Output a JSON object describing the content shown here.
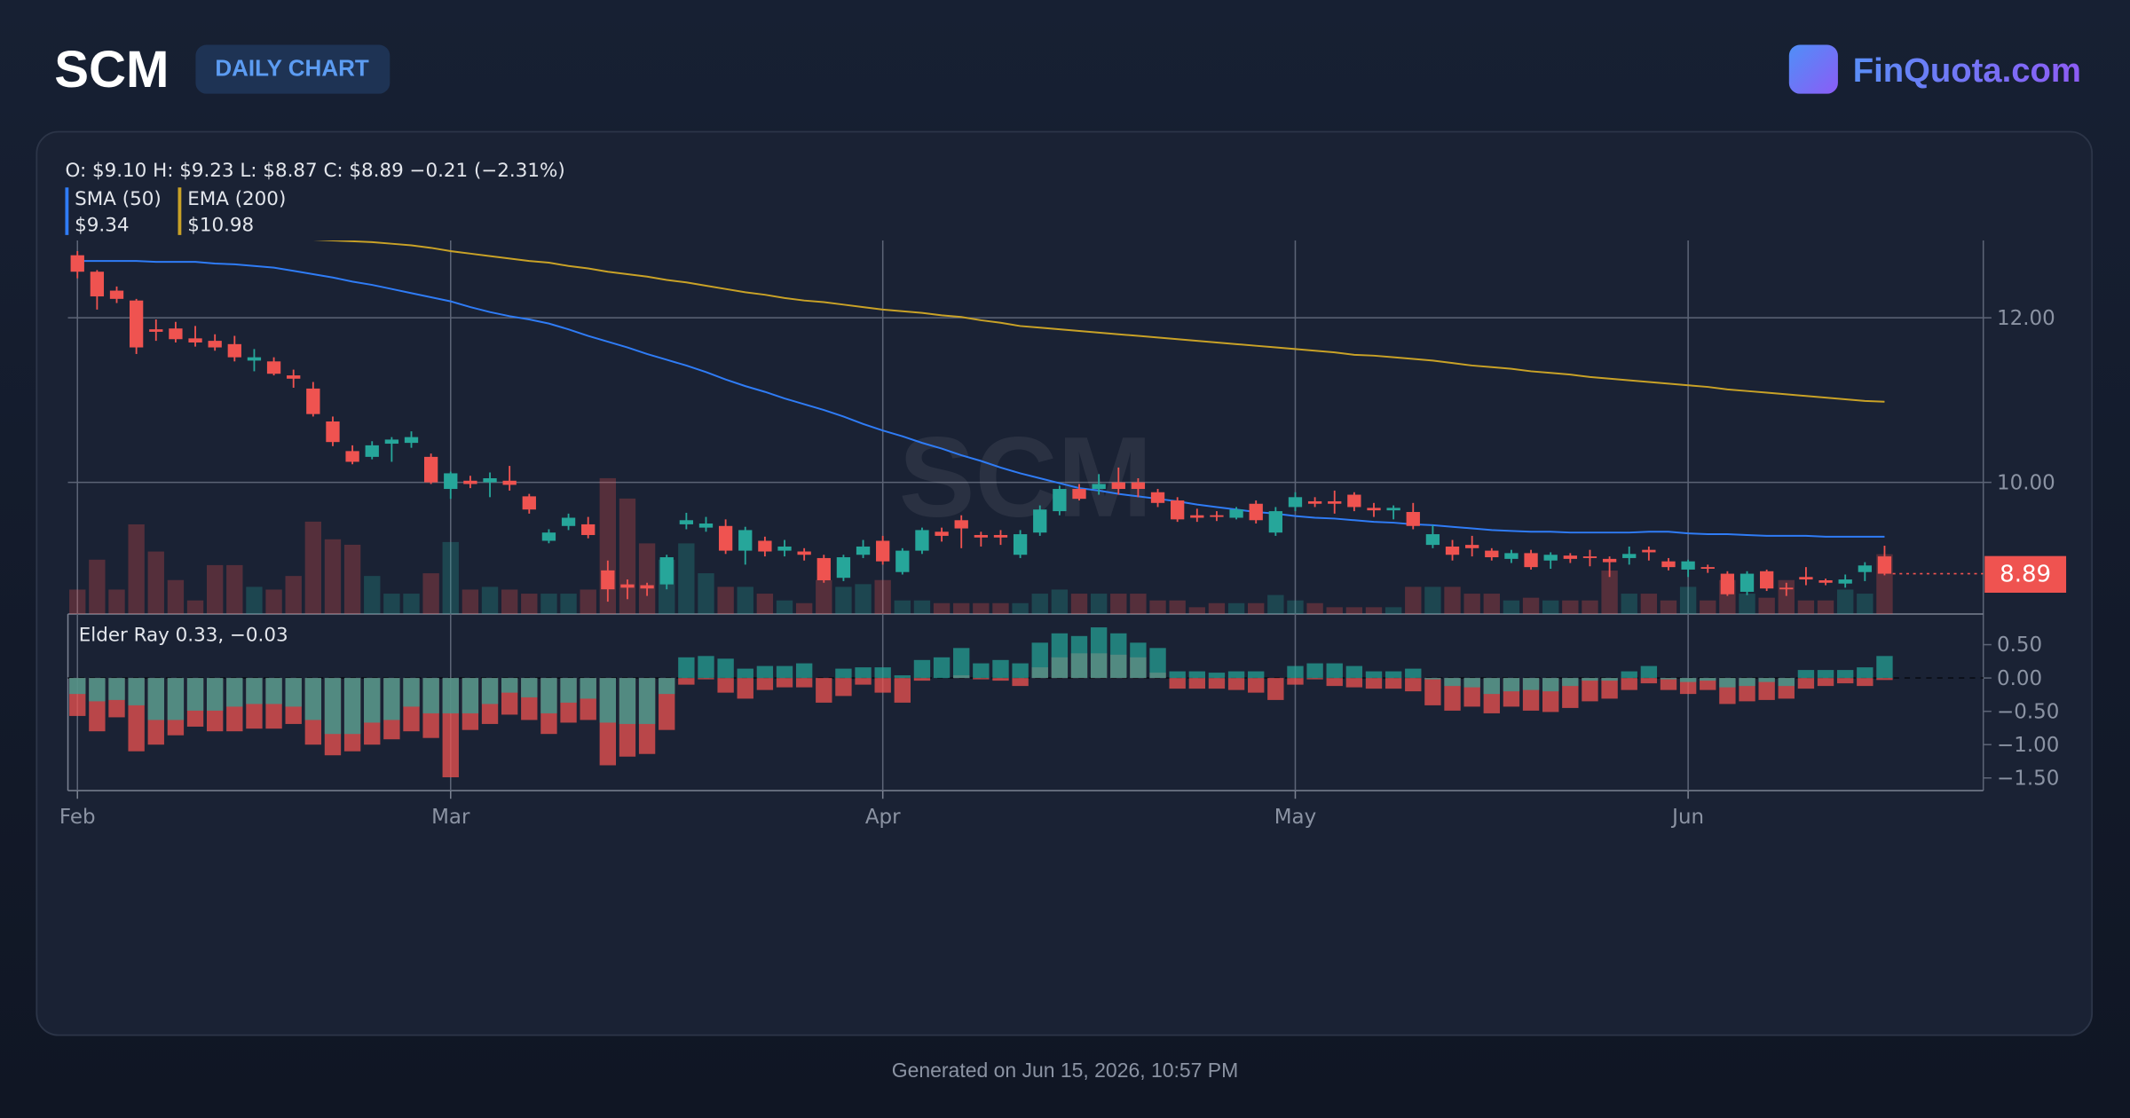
{
  "header": {
    "symbol": "SCM",
    "badge": "DAILY CHART",
    "brand": "FinQuota.com"
  },
  "footer": "Generated on Jun 15, 2026, 10:57 PM",
  "chart_data": {
    "type": "candlestick",
    "watermark": "SCM",
    "ohlc_label": "O: $9.10 H: $9.23 L: $8.87 C: $8.89 −0.21 (−2.31%)",
    "up_color": "#26a69a",
    "down_color": "#ef5350",
    "categories": [
      "Feb",
      null,
      null,
      null,
      null,
      null,
      null,
      null,
      null,
      null,
      null,
      null,
      null,
      null,
      null,
      null,
      null,
      null,
      null,
      "Mar",
      null,
      null,
      null,
      null,
      null,
      null,
      null,
      null,
      null,
      null,
      null,
      null,
      null,
      null,
      null,
      null,
      null,
      null,
      null,
      null,
      null,
      "Apr",
      null,
      null,
      null,
      null,
      null,
      null,
      null,
      null,
      null,
      null,
      null,
      null,
      null,
      null,
      null,
      null,
      null,
      null,
      null,
      null,
      "May",
      null,
      null,
      null,
      null,
      null,
      null,
      null,
      null,
      null,
      null,
      null,
      null,
      null,
      null,
      null,
      null,
      null,
      null,
      null,
      "Jun",
      null,
      null,
      null,
      null,
      null,
      null,
      null,
      null,
      null,
      null
    ],
    "open": [
      12.76,
      12.56,
      12.33,
      12.21,
      11.86,
      11.87,
      11.75,
      11.72,
      11.68,
      11.48,
      11.47,
      11.3,
      11.14,
      10.74,
      10.38,
      10.31,
      10.47,
      10.48,
      10.31,
      9.92,
      10.02,
      10.0,
      10.02,
      9.83,
      9.29,
      9.47,
      9.49,
      8.93,
      8.76,
      8.75,
      8.76,
      9.49,
      9.45,
      9.47,
      9.17,
      9.29,
      9.17,
      9.16,
      9.08,
      8.84,
      9.12,
      9.29,
      8.91,
      9.17,
      9.4,
      9.54,
      9.36,
      9.36,
      9.12,
      9.39,
      9.65,
      9.92,
      9.92,
      10.0,
      10.0,
      9.88,
      9.78,
      9.6,
      9.6,
      9.57,
      9.74,
      9.39,
      9.7,
      9.77,
      9.77,
      9.85,
      9.69,
      9.66,
      9.64,
      9.24,
      9.22,
      9.24,
      9.17,
      9.07,
      9.14,
      9.05,
      9.11,
      9.1,
      9.07,
      9.08,
      9.18,
      9.04,
      8.94,
      8.97,
      8.89,
      8.67,
      8.92,
      8.72,
      8.85,
      8.81,
      8.77,
      8.91,
      9.1
    ],
    "high": [
      12.81,
      12.58,
      12.38,
      12.23,
      11.98,
      11.95,
      11.9,
      11.8,
      11.78,
      11.62,
      11.52,
      11.37,
      11.22,
      10.8,
      10.45,
      10.5,
      10.55,
      10.62,
      10.35,
      10.13,
      10.08,
      10.12,
      10.2,
      9.86,
      9.43,
      9.62,
      9.58,
      9.05,
      8.82,
      8.78,
      9.12,
      9.63,
      9.58,
      9.55,
      9.46,
      9.34,
      9.3,
      9.2,
      9.12,
      9.12,
      9.3,
      9.35,
      9.2,
      9.45,
      9.45,
      9.6,
      9.4,
      9.42,
      9.42,
      9.72,
      9.96,
      9.98,
      10.1,
      10.18,
      10.05,
      9.92,
      9.82,
      9.68,
      9.65,
      9.7,
      9.78,
      9.7,
      9.88,
      9.82,
      9.9,
      9.88,
      9.75,
      9.72,
      9.75,
      9.48,
      9.3,
      9.35,
      9.2,
      9.18,
      9.18,
      9.15,
      9.14,
      9.18,
      9.1,
      9.22,
      9.22,
      9.08,
      9.06,
      9.0,
      8.92,
      8.92,
      8.94,
      8.78,
      8.97,
      8.83,
      8.88,
      9.03,
      9.23
    ],
    "low": [
      12.48,
      12.1,
      12.18,
      11.56,
      11.72,
      11.7,
      11.65,
      11.6,
      11.47,
      11.35,
      11.3,
      11.15,
      10.8,
      10.44,
      10.22,
      10.28,
      10.25,
      10.42,
      9.98,
      9.8,
      9.93,
      9.82,
      9.9,
      9.62,
      9.26,
      9.42,
      9.32,
      8.55,
      8.58,
      8.62,
      8.7,
      9.43,
      9.4,
      9.13,
      9.0,
      9.1,
      9.1,
      9.05,
      8.78,
      8.8,
      9.08,
      9.0,
      8.88,
      9.13,
      9.28,
      9.2,
      9.22,
      9.24,
      9.08,
      9.35,
      9.6,
      9.78,
      9.85,
      9.85,
      9.82,
      9.7,
      9.52,
      9.52,
      9.53,
      9.55,
      9.5,
      9.35,
      9.65,
      9.7,
      9.62,
      9.65,
      9.58,
      9.55,
      9.43,
      9.2,
      9.05,
      9.1,
      9.05,
      9.02,
      8.94,
      8.95,
      9.02,
      8.98,
      8.85,
      9.0,
      9.05,
      8.93,
      8.85,
      8.9,
      8.62,
      8.63,
      8.68,
      8.62,
      8.75,
      8.75,
      8.72,
      8.8,
      8.87
    ],
    "close": [
      12.56,
      12.26,
      12.23,
      11.64,
      11.83,
      11.74,
      11.7,
      11.64,
      11.52,
      11.52,
      11.32,
      11.26,
      10.83,
      10.49,
      10.25,
      10.45,
      10.52,
      10.55,
      10.0,
      10.11,
      9.98,
      10.05,
      9.97,
      9.67,
      9.39,
      9.57,
      9.36,
      8.7,
      8.72,
      8.71,
      9.09,
      9.54,
      9.5,
      9.17,
      9.42,
      9.16,
      9.22,
      9.12,
      8.81,
      9.09,
      9.22,
      9.04,
      9.17,
      9.42,
      9.35,
      9.44,
      9.33,
      9.33,
      9.37,
      9.67,
      9.92,
      9.8,
      9.98,
      9.92,
      9.92,
      9.75,
      9.55,
      9.57,
      9.58,
      9.67,
      9.54,
      9.65,
      9.82,
      9.74,
      9.74,
      9.7,
      9.66,
      9.69,
      9.47,
      9.37,
      9.12,
      9.2,
      9.09,
      9.14,
      8.97,
      9.12,
      9.07,
      9.08,
      9.03,
      9.13,
      9.15,
      8.97,
      9.04,
      8.95,
      8.64,
      8.89,
      8.71,
      8.7,
      8.82,
      8.78,
      8.82,
      8.99,
      8.89
    ],
    "volume": [
      18,
      40,
      18,
      66,
      46,
      25,
      10,
      36,
      36,
      20,
      18,
      28,
      68,
      55,
      51,
      28,
      15,
      15,
      30,
      53,
      18,
      20,
      18,
      15,
      15,
      15,
      18,
      100,
      85,
      52,
      40,
      52,
      30,
      20,
      20,
      15,
      10,
      8,
      25,
      20,
      22,
      25,
      10,
      10,
      8,
      8,
      8,
      8,
      8,
      15,
      18,
      15,
      15,
      15,
      15,
      10,
      10,
      5,
      8,
      8,
      8,
      14,
      10,
      8,
      5,
      5,
      5,
      5,
      20,
      20,
      20,
      15,
      15,
      10,
      12,
      10,
      10,
      10,
      32,
      15,
      15,
      10,
      20,
      10,
      25,
      15,
      12,
      25,
      10,
      10,
      18,
      15,
      44
    ],
    "ylim": [
      8.4,
      12.94
    ],
    "yticks": [
      {
        "value": 10,
        "label": "10.00"
      },
      {
        "value": 12,
        "label": "12.00"
      }
    ],
    "series": [
      {
        "name": "SMA (50)",
        "color": "#2f7cf6",
        "legend_value": "$9.34",
        "values": [
          12.69,
          12.69,
          12.69,
          12.69,
          12.68,
          12.68,
          12.68,
          12.66,
          12.65,
          12.63,
          12.61,
          12.57,
          12.53,
          12.49,
          12.44,
          12.4,
          12.35,
          12.3,
          12.25,
          12.2,
          12.13,
          12.07,
          12.02,
          11.98,
          11.93,
          11.86,
          11.78,
          11.71,
          11.64,
          11.56,
          11.49,
          11.42,
          11.34,
          11.25,
          11.17,
          11.1,
          11.02,
          10.95,
          10.88,
          10.8,
          10.71,
          10.63,
          10.56,
          10.48,
          10.41,
          10.33,
          10.26,
          10.18,
          10.11,
          10.05,
          9.99,
          9.93,
          9.9,
          9.86,
          9.83,
          9.8,
          9.77,
          9.73,
          9.7,
          9.67,
          9.64,
          9.62,
          9.59,
          9.57,
          9.56,
          9.54,
          9.52,
          9.51,
          9.49,
          9.48,
          9.46,
          9.44,
          9.42,
          9.41,
          9.4,
          9.4,
          9.39,
          9.39,
          9.39,
          9.39,
          9.4,
          9.4,
          9.38,
          9.37,
          9.37,
          9.36,
          9.35,
          9.35,
          9.35,
          9.34,
          9.34,
          9.34,
          9.34
        ]
      },
      {
        "name": "EMA (200)",
        "color": "#c9a227",
        "legend_value": "$10.98",
        "values": [
          null,
          null,
          null,
          null,
          null,
          null,
          null,
          null,
          null,
          null,
          null,
          null,
          12.95,
          12.94,
          12.93,
          12.92,
          12.9,
          12.88,
          12.85,
          12.81,
          12.78,
          12.75,
          12.72,
          12.69,
          12.67,
          12.63,
          12.6,
          12.56,
          12.53,
          12.5,
          12.46,
          12.43,
          12.39,
          12.35,
          12.31,
          12.28,
          12.24,
          12.21,
          12.19,
          12.16,
          12.13,
          12.1,
          12.08,
          12.06,
          12.03,
          12.01,
          11.97,
          11.94,
          11.9,
          11.88,
          11.86,
          11.84,
          11.82,
          11.8,
          11.78,
          11.76,
          11.74,
          11.72,
          11.7,
          11.68,
          11.66,
          11.64,
          11.62,
          11.6,
          11.58,
          11.55,
          11.54,
          11.52,
          11.5,
          11.48,
          11.45,
          11.42,
          11.4,
          11.38,
          11.35,
          11.33,
          11.31,
          11.28,
          11.26,
          11.24,
          11.22,
          11.2,
          11.18,
          11.16,
          11.13,
          11.11,
          11.09,
          11.07,
          11.05,
          11.03,
          11.01,
          10.99,
          10.98
        ]
      }
    ],
    "elder": {
      "label": "Elder Ray 0.33, −0.03",
      "ylim": [
        -1.69,
        0.96
      ],
      "yticks": [
        {
          "value": 0.5,
          "label": "0.50"
        },
        {
          "value": 0,
          "label": "0.00"
        },
        {
          "value": -0.5,
          "label": "−0.50"
        },
        {
          "value": -1,
          "label": "−1.00"
        },
        {
          "value": -1.5,
          "label": "−1.50"
        }
      ],
      "bull": [
        -0.24,
        -0.35,
        -0.33,
        -0.41,
        -0.63,
        -0.63,
        -0.49,
        -0.49,
        -0.43,
        -0.39,
        -0.39,
        -0.43,
        -0.63,
        -0.84,
        -0.84,
        -0.67,
        -0.63,
        -0.43,
        -0.53,
        -0.53,
        -0.53,
        -0.39,
        -0.22,
        -0.29,
        -0.53,
        -0.37,
        -0.31,
        -0.67,
        -0.69,
        -0.69,
        -0.24,
        0.31,
        0.33,
        0.29,
        0.14,
        0.18,
        0.18,
        0.22,
        0.0,
        0.14,
        0.16,
        0.16,
        0.04,
        0.27,
        0.31,
        0.45,
        0.22,
        0.27,
        0.22,
        0.53,
        0.67,
        0.63,
        0.76,
        0.67,
        0.53,
        0.45,
        0.1,
        0.1,
        0.08,
        0.1,
        0.1,
        0.0,
        0.18,
        0.22,
        0.22,
        0.18,
        0.1,
        0.1,
        0.14,
        -0.02,
        -0.12,
        -0.14,
        -0.24,
        -0.2,
        -0.18,
        -0.2,
        -0.12,
        -0.04,
        -0.04,
        0.1,
        0.18,
        -0.02,
        -0.06,
        -0.04,
        -0.14,
        -0.12,
        -0.06,
        -0.12,
        0.12,
        0.12,
        0.12,
        0.16,
        0.33
      ],
      "bear": [
        -0.57,
        -0.8,
        -0.59,
        -1.1,
        -1.0,
        -0.86,
        -0.73,
        -0.8,
        -0.8,
        -0.76,
        -0.76,
        -0.69,
        -1.0,
        -1.16,
        -1.1,
        -1.0,
        -0.92,
        -0.8,
        -0.9,
        -1.49,
        -0.78,
        -0.69,
        -0.55,
        -0.63,
        -0.84,
        -0.67,
        -0.63,
        -1.31,
        -1.18,
        -1.14,
        -0.78,
        -0.1,
        -0.02,
        -0.22,
        -0.31,
        -0.18,
        -0.14,
        -0.14,
        -0.37,
        -0.27,
        -0.1,
        -0.22,
        -0.37,
        -0.04,
        0.0,
        0.04,
        -0.02,
        -0.04,
        -0.12,
        0.16,
        0.31,
        0.37,
        0.37,
        0.35,
        0.31,
        0.08,
        -0.16,
        -0.16,
        -0.16,
        -0.18,
        -0.22,
        -0.33,
        -0.1,
        -0.02,
        -0.12,
        -0.14,
        -0.16,
        -0.16,
        -0.2,
        -0.41,
        -0.49,
        -0.43,
        -0.53,
        -0.43,
        -0.49,
        -0.51,
        -0.45,
        -0.35,
        -0.31,
        -0.18,
        -0.08,
        -0.18,
        -0.24,
        -0.18,
        -0.39,
        -0.35,
        -0.33,
        -0.31,
        -0.16,
        -0.12,
        -0.08,
        -0.12,
        -0.03
      ]
    }
  }
}
